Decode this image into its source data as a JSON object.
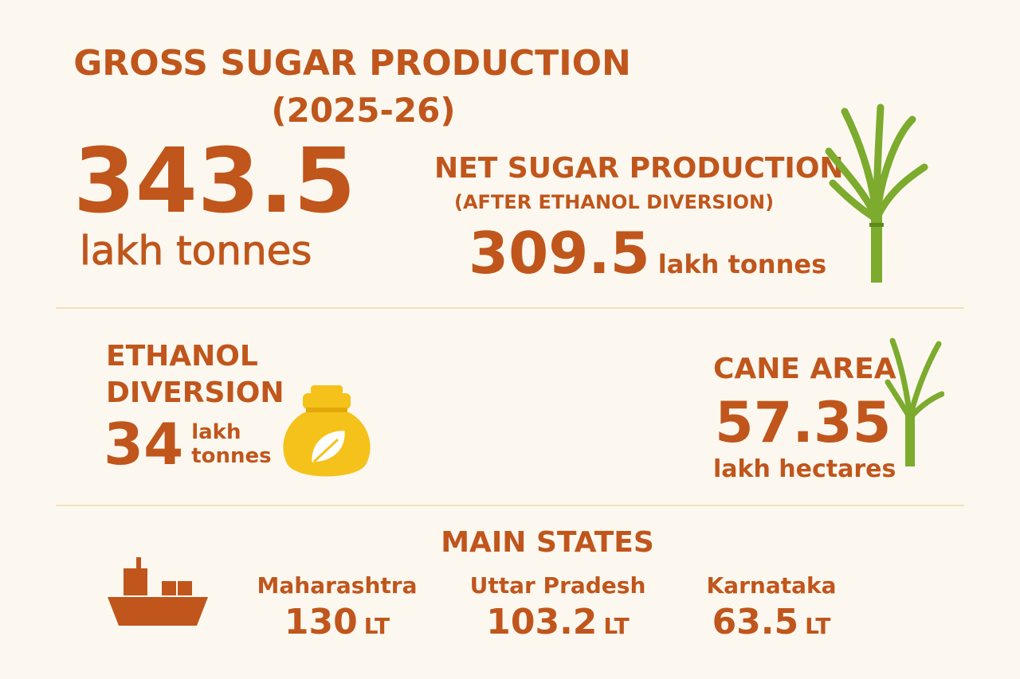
{
  "header": {
    "title": "GROSS SUGAR PRODUCTION",
    "subtitle": "(2025-26)"
  },
  "gross": {
    "value": 343.5,
    "unit": "lakh tonnes"
  },
  "net": {
    "title": "NET SUGAR PRODUCTION",
    "subtitle": "(AFTER ETHANOL DIVERSION)",
    "value": 309.5,
    "unit": "lakh tonnes"
  },
  "ethanol": {
    "title": "ETHANOL DIVERSION",
    "value": 34,
    "unit": "lakh tonnes"
  },
  "cane_area": {
    "title": "CANE AREA",
    "value": 57.35,
    "unit": "lakh hectares"
  },
  "states": {
    "title": "MAIN STATES",
    "items": [
      {
        "name": "Maharashtra",
        "value": 130,
        "unit": "LT"
      },
      {
        "name": "Uttar Pradesh",
        "value": 103.2,
        "unit": "LT"
      },
      {
        "name": "Karnataka",
        "value": 63.5,
        "unit": "LT"
      }
    ]
  }
}
